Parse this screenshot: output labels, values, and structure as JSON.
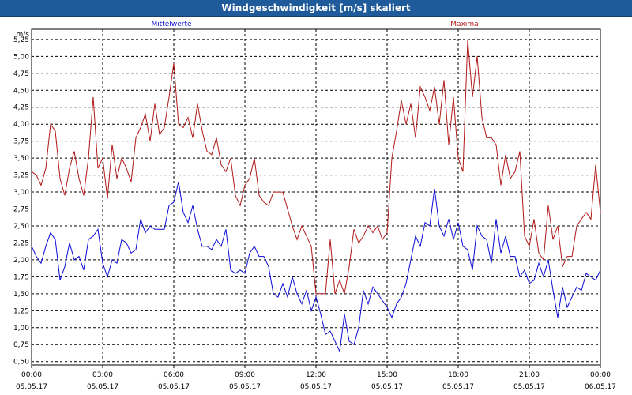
{
  "window": {
    "title": "Windgeschwindigkeit [m/s] skaliert"
  },
  "colors": {
    "mean": "#0b0bd6",
    "max": "#b01818",
    "grid": "#000000",
    "frame": "#000000"
  },
  "chart_data": {
    "type": "line",
    "title": "",
    "ylabel": "m/s",
    "ylim": [
      0.45,
      5.4
    ],
    "xlim": [
      0,
      24
    ],
    "grid": true,
    "legend_placement": "top",
    "yticks": [
      "0,50",
      "0,75",
      "1,00",
      "1,25",
      "1,50",
      "1,75",
      "2,00",
      "2,25",
      "2,50",
      "2,75",
      "3,00",
      "3,25",
      "3,50",
      "3,75",
      "4,00",
      "4,25",
      "4,50",
      "4,75",
      "5,00",
      "5,25"
    ],
    "ytick_values": [
      0.5,
      0.75,
      1.0,
      1.25,
      1.5,
      1.75,
      2.0,
      2.25,
      2.5,
      2.75,
      3.0,
      3.25,
      3.5,
      3.75,
      4.0,
      4.25,
      4.5,
      4.75,
      5.0,
      5.25
    ],
    "xticks": [
      {
        "time": "00:00",
        "date": "05.05.17"
      },
      {
        "time": "03:00",
        "date": "05.05.17"
      },
      {
        "time": "06:00",
        "date": "05.05.17"
      },
      {
        "time": "09:00",
        "date": "05.05.17"
      },
      {
        "time": "12:00",
        "date": "05.05.17"
      },
      {
        "time": "15:00",
        "date": "05.05.17"
      },
      {
        "time": "18:00",
        "date": "05.05.17"
      },
      {
        "time": "21:00",
        "date": "05.05.17"
      },
      {
        "time": "00:00",
        "date": "06.05.17"
      }
    ],
    "xtick_values": [
      0,
      3,
      6,
      9,
      12,
      15,
      18,
      21,
      24
    ],
    "series": [
      {
        "name": "Mittelwerte",
        "color": "#0b0bd6",
        "x": [
          0,
          0.2,
          0.4,
          0.6,
          0.8,
          1.0,
          1.2,
          1.4,
          1.6,
          1.8,
          2.0,
          2.2,
          2.4,
          2.6,
          2.8,
          3.0,
          3.2,
          3.4,
          3.6,
          3.8,
          4.0,
          4.2,
          4.4,
          4.6,
          4.8,
          5.0,
          5.2,
          5.4,
          5.6,
          5.8,
          6.0,
          6.2,
          6.4,
          6.6,
          6.8,
          7.0,
          7.2,
          7.4,
          7.6,
          7.8,
          8.0,
          8.2,
          8.4,
          8.6,
          8.8,
          9.0,
          9.2,
          9.4,
          9.6,
          9.8,
          10.0,
          10.2,
          10.4,
          10.6,
          10.8,
          11.0,
          11.2,
          11.4,
          11.6,
          11.8,
          12.0,
          12.2,
          12.4,
          12.6,
          12.8,
          13.0,
          13.2,
          13.4,
          13.6,
          13.8,
          14.0,
          14.2,
          14.4,
          14.6,
          14.8,
          15.0,
          15.2,
          15.4,
          15.6,
          15.8,
          16.0,
          16.2,
          16.4,
          16.6,
          16.8,
          17.0,
          17.2,
          17.4,
          17.6,
          17.8,
          18.0,
          18.2,
          18.4,
          18.6,
          18.8,
          19.0,
          19.2,
          19.4,
          19.6,
          19.8,
          20.0,
          20.2,
          20.4,
          20.6,
          20.8,
          21.0,
          21.2,
          21.4,
          21.6,
          21.8,
          22.0,
          22.2,
          22.4,
          22.6,
          22.8,
          23.0,
          23.2,
          23.4,
          23.6,
          23.8,
          24.0
        ],
        "values": [
          2.2,
          2.05,
          1.95,
          2.2,
          2.4,
          2.3,
          1.7,
          1.9,
          2.25,
          2.0,
          2.05,
          1.85,
          2.3,
          2.35,
          2.45,
          1.95,
          1.75,
          2.0,
          1.95,
          2.3,
          2.25,
          2.1,
          2.15,
          2.6,
          2.4,
          2.5,
          2.45,
          2.45,
          2.45,
          2.8,
          2.85,
          3.15,
          2.7,
          2.55,
          2.8,
          2.45,
          2.2,
          2.2,
          2.15,
          2.3,
          2.2,
          2.45,
          1.85,
          1.8,
          1.85,
          1.8,
          2.1,
          2.2,
          2.05,
          2.05,
          1.9,
          1.5,
          1.45,
          1.65,
          1.45,
          1.75,
          1.5,
          1.35,
          1.55,
          1.25,
          1.45,
          1.2,
          0.9,
          0.95,
          0.8,
          0.65,
          1.2,
          0.8,
          0.75,
          1.0,
          1.55,
          1.35,
          1.6,
          1.5,
          1.4,
          1.3,
          1.15,
          1.35,
          1.45,
          1.65,
          2.0,
          2.35,
          2.2,
          2.55,
          2.5,
          3.05,
          2.5,
          2.35,
          2.6,
          2.3,
          2.55,
          2.2,
          2.15,
          1.85,
          2.5,
          2.35,
          2.3,
          1.95,
          2.6,
          2.1,
          2.35,
          2.05,
          2.05,
          1.75,
          1.85,
          1.65,
          1.7,
          1.95,
          1.75,
          2.0,
          1.55,
          1.15,
          1.6,
          1.3,
          1.45,
          1.6,
          1.55,
          1.8,
          1.75,
          1.7,
          1.85
        ]
      },
      {
        "name": "Maxima",
        "color": "#b01818",
        "x": [
          0,
          0.2,
          0.4,
          0.6,
          0.8,
          1.0,
          1.2,
          1.4,
          1.6,
          1.8,
          2.0,
          2.2,
          2.4,
          2.6,
          2.8,
          3.0,
          3.2,
          3.4,
          3.6,
          3.8,
          4.0,
          4.2,
          4.4,
          4.6,
          4.8,
          5.0,
          5.2,
          5.4,
          5.6,
          5.8,
          6.0,
          6.2,
          6.4,
          6.6,
          6.8,
          7.0,
          7.2,
          7.4,
          7.6,
          7.8,
          8.0,
          8.2,
          8.4,
          8.6,
          8.8,
          9.0,
          9.2,
          9.4,
          9.6,
          9.8,
          10.0,
          10.2,
          10.4,
          10.6,
          10.8,
          11.0,
          11.2,
          11.4,
          11.6,
          11.8,
          12.0,
          12.2,
          12.4,
          12.6,
          12.8,
          13.0,
          13.2,
          13.4,
          13.6,
          13.8,
          14.0,
          14.2,
          14.4,
          14.6,
          14.8,
          15.0,
          15.2,
          15.4,
          15.6,
          15.8,
          16.0,
          16.2,
          16.4,
          16.6,
          16.8,
          17.0,
          17.2,
          17.4,
          17.6,
          17.8,
          18.0,
          18.2,
          18.4,
          18.6,
          18.8,
          19.0,
          19.2,
          19.4,
          19.6,
          19.8,
          20.0,
          20.2,
          20.4,
          20.6,
          20.8,
          21.0,
          21.2,
          21.4,
          21.6,
          21.8,
          22.0,
          22.2,
          22.4,
          22.6,
          22.8,
          23.0,
          23.2,
          23.4,
          23.6,
          23.8,
          24.0
        ],
        "values": [
          3.3,
          3.25,
          3.1,
          3.35,
          4.0,
          3.9,
          3.2,
          2.95,
          3.35,
          3.6,
          3.2,
          2.95,
          3.5,
          4.4,
          3.35,
          3.5,
          2.9,
          3.7,
          3.2,
          3.5,
          3.35,
          3.15,
          3.8,
          3.95,
          4.15,
          3.75,
          4.3,
          3.85,
          3.95,
          4.4,
          4.9,
          4.0,
          3.95,
          4.1,
          3.8,
          4.3,
          3.9,
          3.6,
          3.55,
          3.8,
          3.4,
          3.3,
          3.5,
          2.95,
          2.8,
          3.1,
          3.2,
          3.5,
          2.95,
          2.85,
          2.8,
          3.0,
          3.0,
          3.0,
          2.75,
          2.5,
          2.3,
          2.5,
          2.35,
          2.2,
          1.5,
          1.5,
          1.5,
          2.3,
          1.5,
          1.7,
          1.5,
          1.9,
          2.45,
          2.25,
          2.35,
          2.5,
          2.4,
          2.5,
          2.3,
          2.4,
          3.5,
          3.9,
          4.35,
          4.0,
          4.3,
          3.8,
          4.55,
          4.4,
          4.2,
          4.55,
          4.0,
          4.65,
          3.7,
          4.4,
          3.5,
          3.3,
          5.25,
          4.4,
          5.0,
          4.1,
          3.8,
          3.8,
          3.7,
          3.1,
          3.55,
          3.2,
          3.3,
          3.6,
          2.35,
          2.2,
          2.6,
          2.1,
          2.0,
          2.8,
          2.3,
          2.5,
          1.9,
          2.05,
          2.05,
          2.5,
          2.6,
          2.7,
          2.6,
          3.4,
          2.7
        ]
      }
    ]
  }
}
